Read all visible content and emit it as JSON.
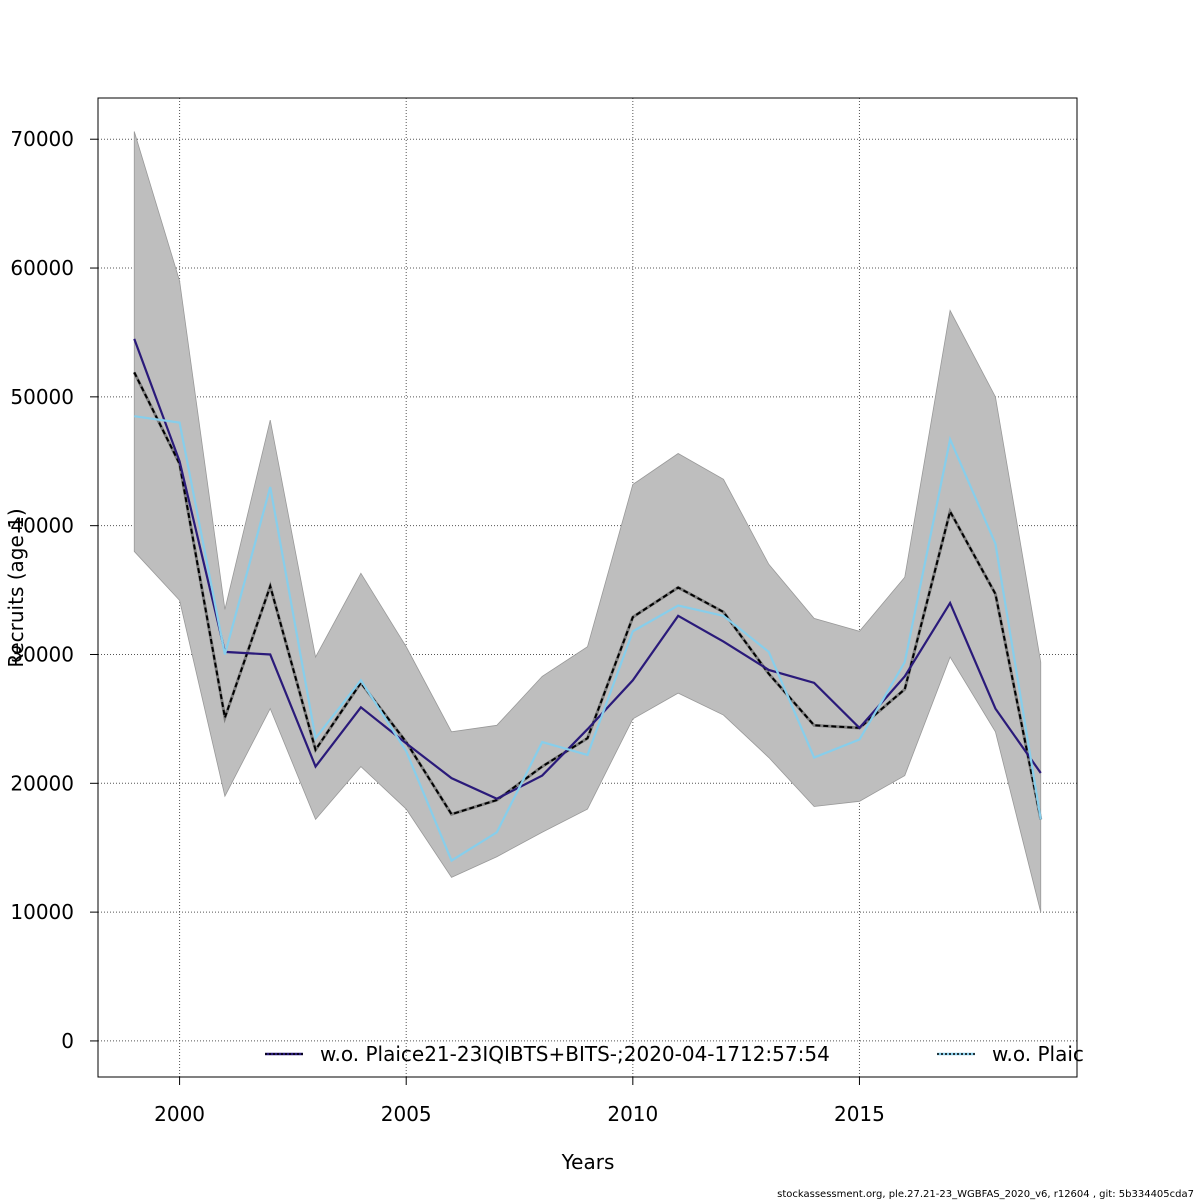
{
  "chart_data": {
    "type": "line",
    "xlabel": "Years",
    "ylabel": "Recruits (age 1)",
    "xlim": [
      1998.2,
      2019.8
    ],
    "ylim": [
      -2800,
      73200
    ],
    "x_ticks": [
      2000,
      2005,
      2010,
      2015
    ],
    "y_ticks": [
      0,
      10000,
      20000,
      30000,
      40000,
      50000,
      60000,
      70000
    ],
    "grid": true,
    "x": [
      1999,
      2000,
      2001,
      2002,
      2003,
      2004,
      2005,
      2006,
      2007,
      2008,
      2009,
      2010,
      2011,
      2012,
      2013,
      2014,
      2015,
      2016,
      2017,
      2018,
      2019
    ],
    "confidence_band": {
      "lower": [
        38000,
        34200,
        19000,
        25800,
        17200,
        21300,
        18000,
        12700,
        14300,
        16200,
        18000,
        25000,
        27000,
        25300,
        22000,
        18200,
        18600,
        20600,
        29800,
        24000,
        10000
      ],
      "upper": [
        70600,
        59000,
        33500,
        48200,
        29800,
        36300,
        30600,
        24000,
        24500,
        28300,
        30600,
        43200,
        45600,
        43600,
        37000,
        32800,
        31800,
        36000,
        56700,
        50000,
        29400
      ],
      "color": "#bebebe"
    },
    "series": [
      {
        "values": [
          51900,
          44800,
          25100,
          35300,
          22600,
          27800,
          23200,
          17600,
          18700,
          21300,
          23500,
          32900,
          35200,
          33300,
          28500,
          24500,
          24300,
          27300,
          41100,
          34700,
          17200
        ],
        "color": "#000000",
        "style": "dashed-over-gray"
      },
      {
        "values": [
          54500,
          45000,
          30200,
          30000,
          21300,
          25900,
          23100,
          20400,
          18800,
          20600,
          24200,
          28000,
          33000,
          31000,
          28800,
          27800,
          24300,
          28300,
          34000,
          25800,
          20800
        ],
        "color": "#2a1a7a",
        "style": "solid"
      },
      {
        "values": [
          48500,
          48000,
          30000,
          43000,
          23500,
          28000,
          22500,
          14000,
          16200,
          23200,
          22200,
          31800,
          33800,
          33000,
          30200,
          22000,
          23400,
          29400,
          46700,
          38600,
          17200
        ],
        "color": "#87ceeb",
        "style": "solid"
      }
    ],
    "legend": [
      {
        "label": "w.o. Plaice21-23IQIBTS+BITS-;2020-04-1712:57:54",
        "line_color": "#2a1a7a"
      },
      {
        "label": "w.o. Plaic",
        "line_color": "#87ceeb"
      }
    ],
    "legend_placement": "bottom"
  },
  "footer": "stockassessment.org, ple.27.21-23_WGBFAS_2020_v6, r12604 , git: 5b334405cda7"
}
